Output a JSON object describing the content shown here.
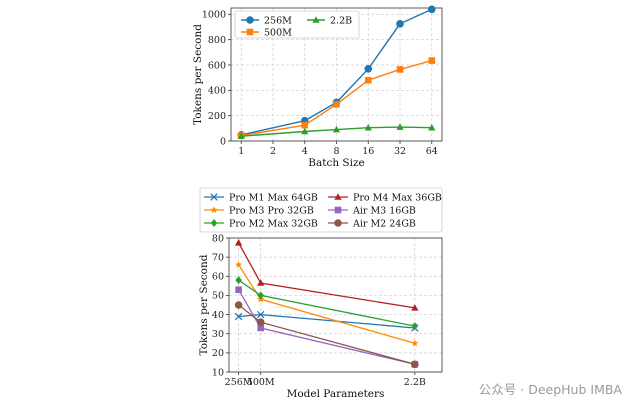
{
  "chart_data": [
    {
      "type": "line",
      "title": "",
      "xlabel": "Batch Size",
      "ylabel": "Tokens per Second",
      "x_scale": "log2",
      "x": [
        1,
        2,
        4,
        8,
        16,
        32,
        64
      ],
      "x_ticks": [
        "1",
        "2",
        "4",
        "8",
        "16",
        "32",
        "64"
      ],
      "y_ticks": [
        "0",
        "200",
        "400",
        "600",
        "800",
        "1000"
      ],
      "ylim": [
        0,
        1050
      ],
      "grid": true,
      "legend": "upper-left",
      "series": [
        {
          "name": "256M",
          "color": "#1f77b4",
          "marker": "circle",
          "points": [
            [
              1,
              48
            ],
            [
              4,
              160
            ],
            [
              8,
              305
            ],
            [
              16,
              570
            ],
            [
              32,
              925
            ],
            [
              64,
              1040
            ]
          ]
        },
        {
          "name": "500M",
          "color": "#ff7f0e",
          "marker": "square",
          "points": [
            [
              1,
              43
            ],
            [
              4,
              125
            ],
            [
              8,
              290
            ],
            [
              16,
              480
            ],
            [
              32,
              565
            ],
            [
              64,
              635
            ]
          ]
        },
        {
          "name": "2.2B",
          "color": "#2ca02c",
          "marker": "triangle-up",
          "points": [
            [
              1,
              38
            ],
            [
              4,
              75
            ],
            [
              8,
              90
            ],
            [
              16,
              105
            ],
            [
              32,
              110
            ],
            [
              64,
              105
            ]
          ]
        }
      ]
    },
    {
      "type": "line",
      "title": "",
      "xlabel": "Model Parameters",
      "ylabel": "Tokens per Second",
      "categories": [
        "256M",
        "500M",
        "2.2B"
      ],
      "x_values": [
        0.256,
        0.5,
        2.2
      ],
      "y_ticks": [
        "10",
        "20",
        "30",
        "40",
        "50",
        "60",
        "70",
        "80"
      ],
      "ylim": [
        10,
        80
      ],
      "grid": true,
      "legend": "above, two columns",
      "series": [
        {
          "name": "Pro M1 Max 64GB",
          "color": "#1f77b4",
          "marker": "x",
          "values": [
            39,
            40,
            33
          ]
        },
        {
          "name": "Pro M4 Max 36GB",
          "color": "#b22222",
          "marker": "triangle-up",
          "values": [
            77.5,
            56.5,
            43.5
          ]
        },
        {
          "name": "Pro M3 Pro 32GB",
          "color": "#ff8c00",
          "marker": "star",
          "values": [
            66,
            48,
            25
          ]
        },
        {
          "name": "Air M3 16GB",
          "color": "#9467bd",
          "marker": "square",
          "values": [
            53,
            33,
            14
          ]
        },
        {
          "name": "Pro M2 Max 32GB",
          "color": "#2ca02c",
          "marker": "diamond",
          "values": [
            58,
            50,
            34
          ]
        },
        {
          "name": "Air M2 24GB",
          "color": "#8c564b",
          "marker": "circle",
          "values": [
            45,
            36,
            14
          ]
        }
      ]
    }
  ],
  "watermark": "公众号 · DeepHub IMBA"
}
